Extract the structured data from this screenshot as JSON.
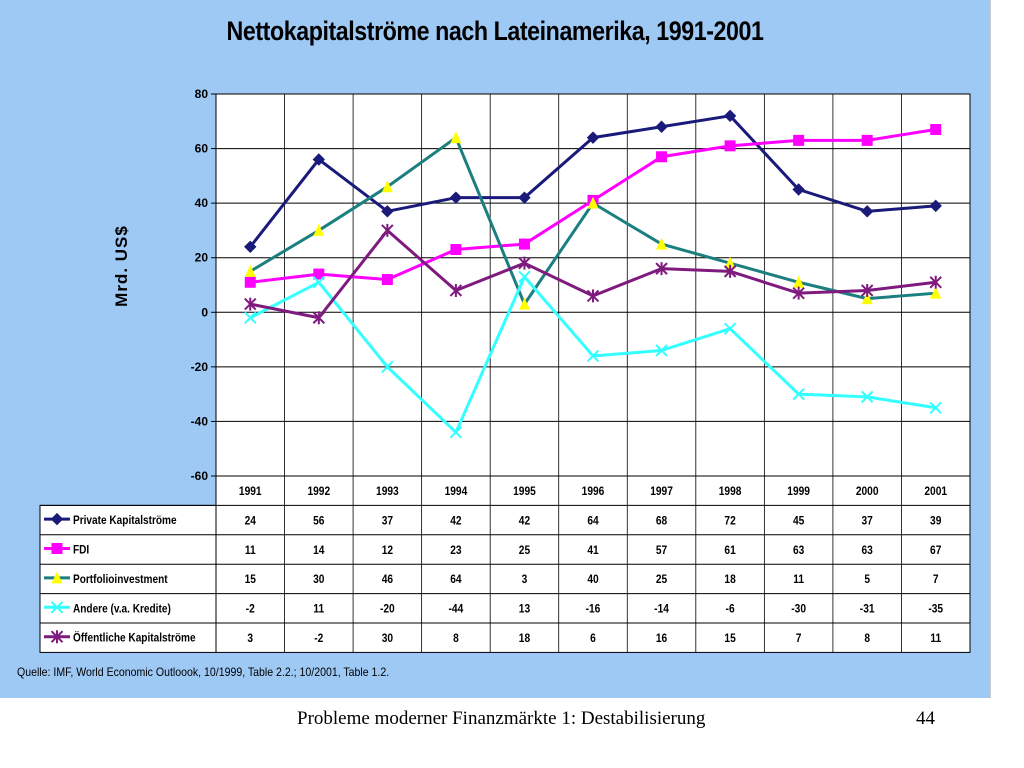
{
  "footer": {
    "text": "Probleme moderner Finanzmärkte 1: Destabilisierung",
    "page": "44"
  },
  "source": "Quelle: IMF, World Economic Outloook, 10/1999, Table 2.2.; 10/2001, Table 1.2.",
  "colors": {
    "background": "#9ec9f5",
    "plot_bg": "#ffffff"
  },
  "chart_data": {
    "type": "line",
    "title": "Nettokapitalströme nach Lateinamerika, 1991-2001",
    "xlabel": "",
    "ylabel": "Mrd. US$",
    "ylim": [
      -60,
      80
    ],
    "yticks": [
      80,
      60,
      40,
      20,
      0,
      -20,
      -40,
      -60
    ],
    "grid": true,
    "legend": "data-table",
    "categories": [
      "1991",
      "1992",
      "1993",
      "1994",
      "1995",
      "1996",
      "1997",
      "1998",
      "1999",
      "2000",
      "2001"
    ],
    "series": [
      {
        "name": "Private Kapitalströme",
        "color": "#1a1a7a",
        "marker": "diamond",
        "values": [
          24,
          56,
          37,
          42,
          42,
          64,
          68,
          72,
          45,
          37,
          39
        ]
      },
      {
        "name": "FDI",
        "color": "#ff00ff",
        "marker": "square",
        "values": [
          11,
          14,
          12,
          23,
          25,
          41,
          57,
          61,
          63,
          63,
          67
        ]
      },
      {
        "name": "Portfolioinvestment",
        "color": "#1c7f7f",
        "marker": "triangle",
        "marker_color": "#ffff00",
        "values": [
          15,
          30,
          46,
          64,
          3,
          40,
          25,
          18,
          11,
          5,
          7
        ]
      },
      {
        "name": "Andere (v.a. Kredite)",
        "color": "#33ffff",
        "marker": "x",
        "values": [
          -2,
          11,
          -20,
          -44,
          13,
          -16,
          -14,
          -6,
          -30,
          -31,
          -35
        ]
      },
      {
        "name": "Öffentliche Kapitalströme",
        "color": "#7f1a7f",
        "marker": "star",
        "values": [
          3,
          -2,
          30,
          8,
          18,
          6,
          16,
          15,
          7,
          8,
          11
        ]
      }
    ]
  }
}
